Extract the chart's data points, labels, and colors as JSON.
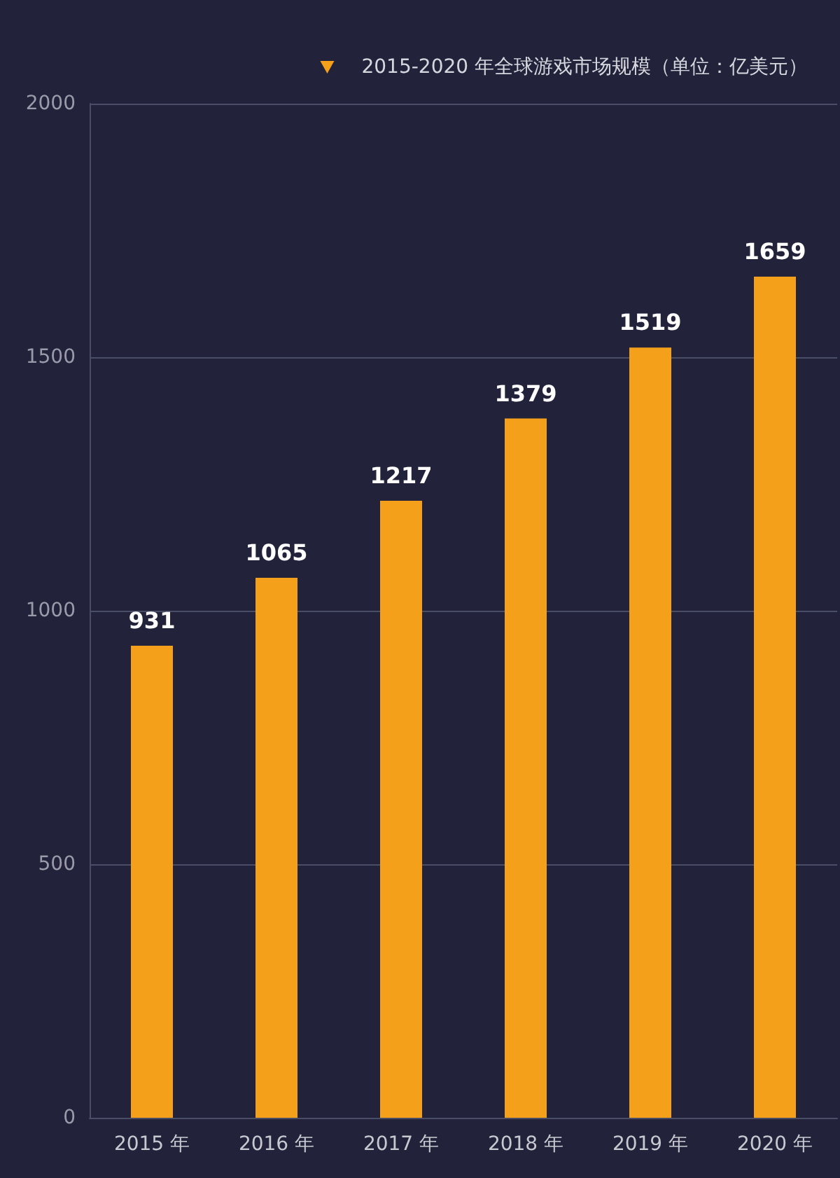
{
  "chart_data": {
    "type": "bar",
    "categories": [
      "2015 年",
      "2016 年",
      "2017 年",
      "2018 年",
      "2019 年",
      "2020 年"
    ],
    "series": [
      {
        "name": "2015-2020 年全球游戏市场规模（单位：亿美元）",
        "color": "#f5a01a",
        "values": [
          931,
          1065,
          1217,
          1379,
          1519,
          1659
        ]
      }
    ],
    "ylim": [
      0,
      2000
    ],
    "yticks": [
      0,
      500,
      1000,
      1500,
      2000
    ],
    "grid": "y",
    "data_labels": true,
    "legend": "top right"
  }
}
